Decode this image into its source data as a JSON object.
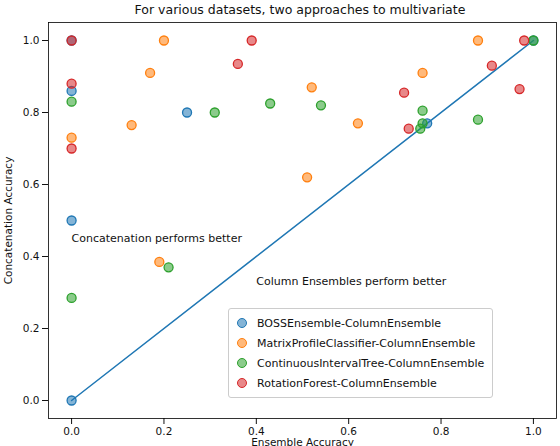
{
  "chart_data": {
    "type": "scatter",
    "title": "For various datasets, two approaches to multivariate",
    "x_label": "Ensemble Accuracy",
    "y_label": "Concatenation Accuracy",
    "xlim": [
      -0.05,
      1.05
    ],
    "ylim": [
      -0.05,
      1.05
    ],
    "xticks": [
      {
        "value": 0,
        "label": "0.0"
      },
      {
        "value": 0.2,
        "label": "0.2"
      },
      {
        "value": 0.4,
        "label": "0.4"
      },
      {
        "value": 0.6,
        "label": "0.6"
      },
      {
        "value": 0.8,
        "label": "0.8"
      },
      {
        "value": 1,
        "label": "1.0"
      }
    ],
    "yticks": [
      {
        "value": 0,
        "label": "0.0"
      },
      {
        "value": 0.2,
        "label": "0.2"
      },
      {
        "value": 0.4,
        "label": "0.4"
      },
      {
        "value": 0.6,
        "label": "0.6"
      },
      {
        "value": 0.8,
        "label": "0.8"
      },
      {
        "value": 1,
        "label": "1.0"
      }
    ],
    "grid": false,
    "legend": "lower right",
    "reference_line": {
      "x": [
        0,
        1
      ],
      "y": [
        0,
        1
      ],
      "color": "#1f77b4"
    },
    "annotations": [
      {
        "text": "Concatenation performs better",
        "x": 0.0,
        "y": 0.45
      },
      {
        "text": "Column Ensembles perform better",
        "x": 0.4,
        "y": 0.33
      }
    ],
    "series": [
      {
        "name": "BOSSEnsemble-ColumnEnsemble",
        "color": "#1f77b4",
        "marker": "circle",
        "x": [
          0,
          0,
          0,
          0,
          0.25,
          0.77,
          1.0
        ],
        "y": [
          1.0,
          0.86,
          0.5,
          0.0,
          0.8,
          0.77,
          1.0
        ]
      },
      {
        "name": "MatrixProfileClassifier-ColumnEnsemble",
        "color": "#ff7f0e",
        "marker": "circle",
        "x": [
          0,
          0.13,
          0.17,
          0.2,
          0.19,
          0.51,
          0.52,
          0.62,
          0.76,
          0.88
        ],
        "y": [
          0.73,
          0.765,
          0.91,
          1.0,
          0.385,
          0.62,
          0.87,
          0.77,
          0.91,
          1.0
        ]
      },
      {
        "name": "ContinuousIntervalTree-ColumnEnsemble",
        "color": "#2ca02c",
        "marker": "circle",
        "x": [
          0,
          0,
          0.21,
          0.31,
          0.43,
          0.54,
          0.76,
          0.76,
          0.755,
          0.88,
          1.0
        ],
        "y": [
          0.83,
          0.285,
          0.37,
          0.8,
          0.825,
          0.82,
          0.805,
          0.77,
          0.755,
          0.78,
          1.0
        ]
      },
      {
        "name": "RotationForest-ColumnEnsemble",
        "color": "#d62728",
        "marker": "circle",
        "x": [
          0,
          0,
          0,
          0.36,
          0.39,
          0.72,
          0.73,
          0.91,
          0.97,
          0.98
        ],
        "y": [
          1.0,
          0.88,
          0.7,
          0.935,
          1.0,
          0.855,
          0.755,
          0.93,
          0.865,
          1.0
        ]
      }
    ]
  }
}
